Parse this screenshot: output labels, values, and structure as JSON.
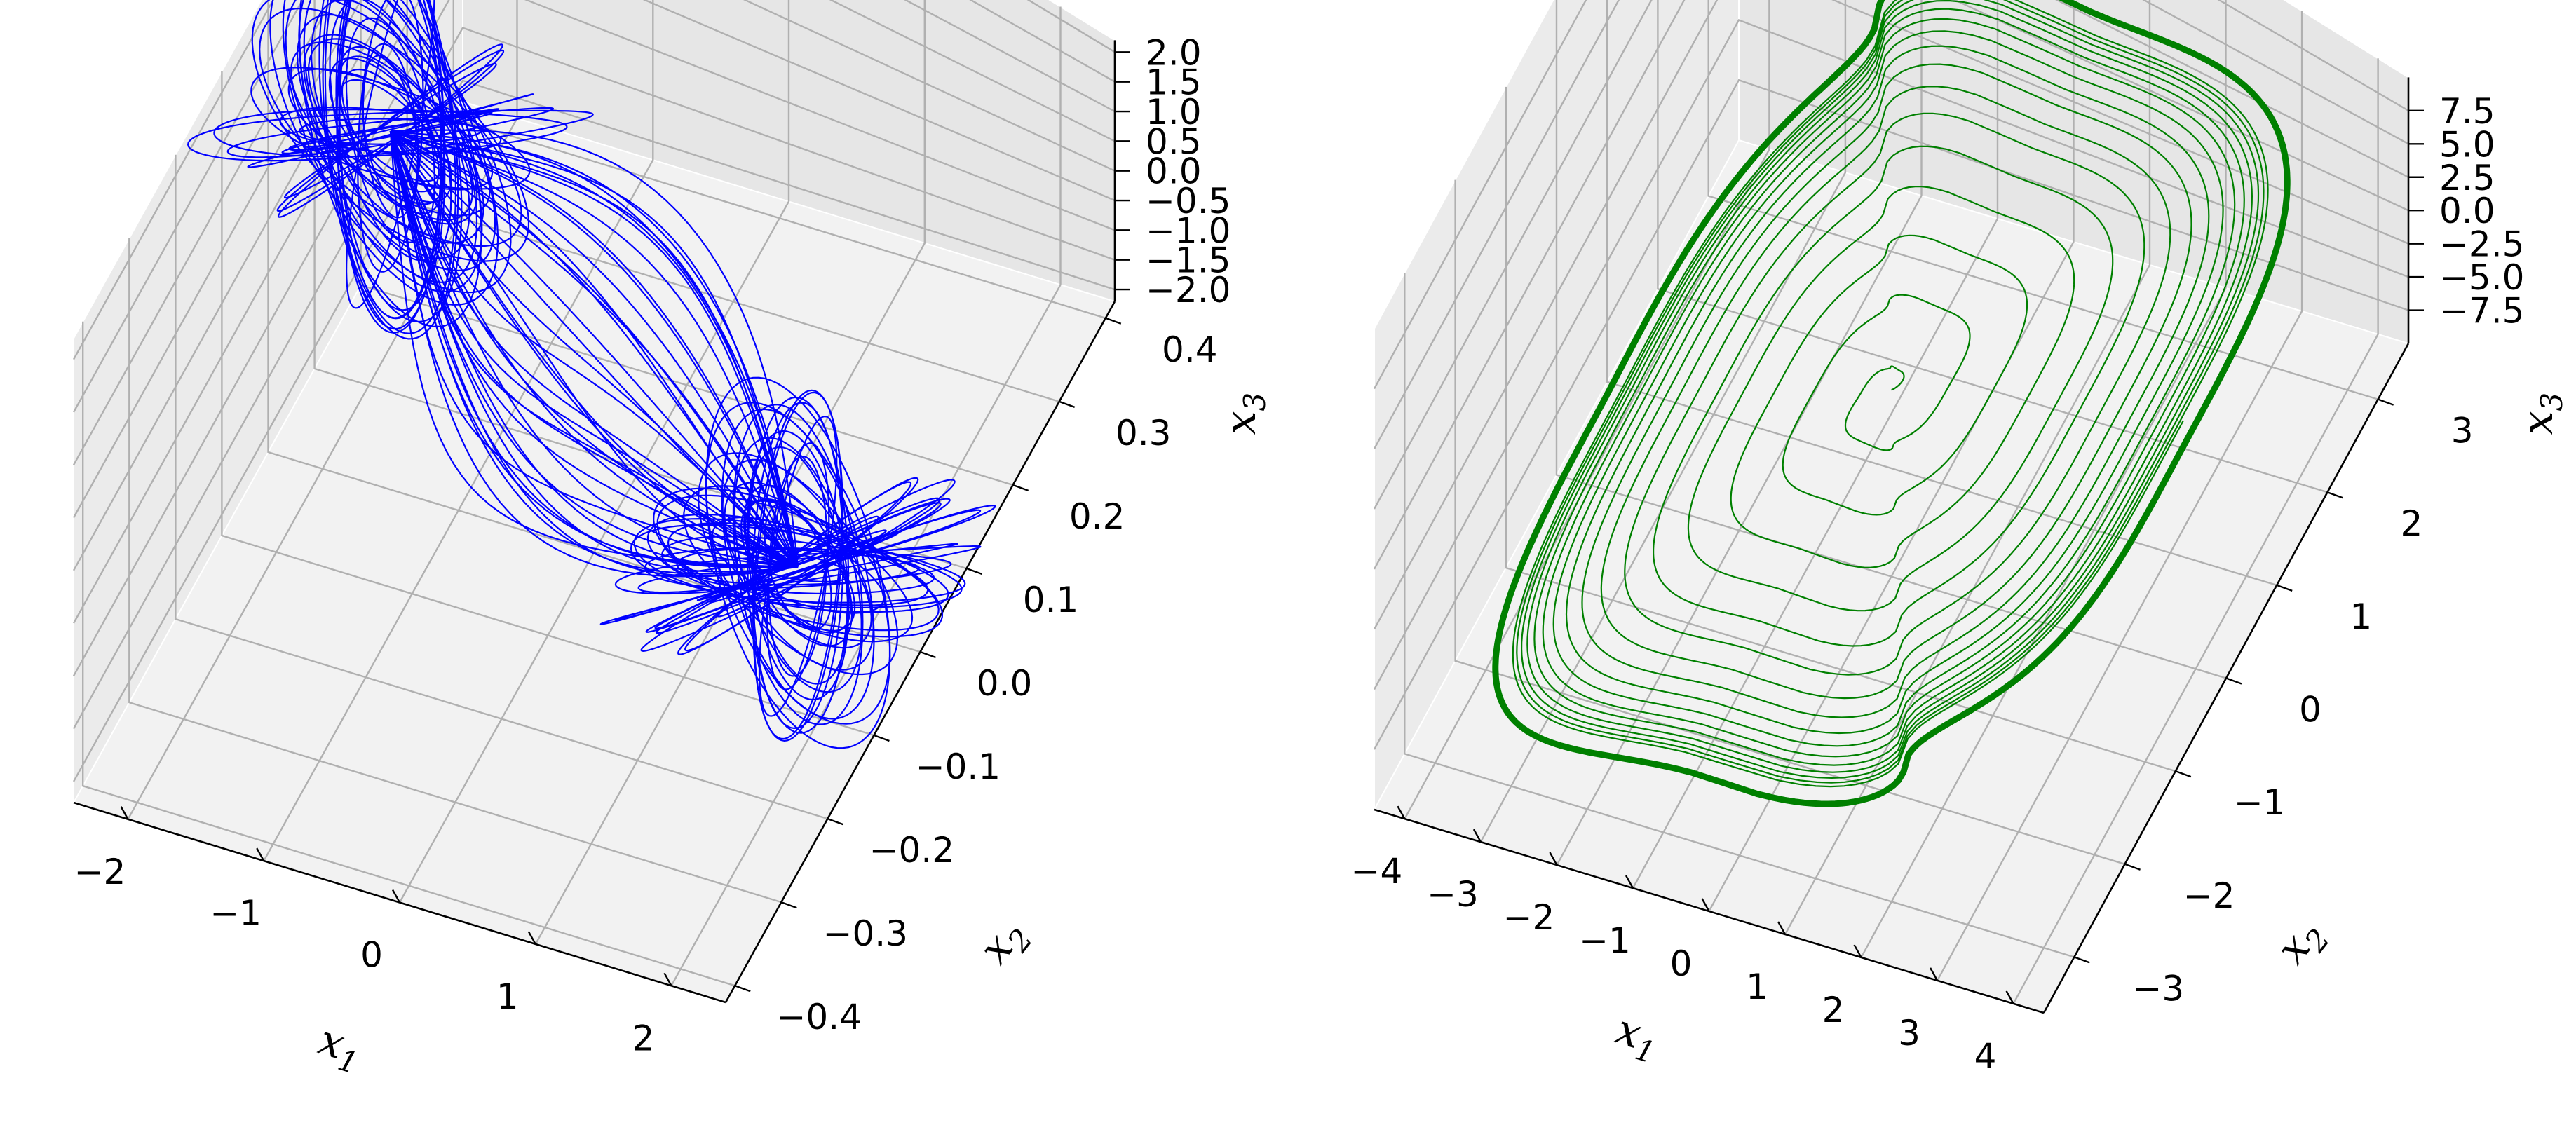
{
  "chart_data": [
    {
      "type": "line3d",
      "title": "",
      "xlabel": "x_1",
      "ylabel": "x_2",
      "zlabel": "x_3",
      "xlim": [
        -2.4,
        2.4
      ],
      "ylim": [
        -0.42,
        0.42
      ],
      "zlim": [
        -2.2,
        2.2
      ],
      "xticks": [
        -2,
        -1,
        0,
        1,
        2
      ],
      "xtick_labels": [
        "−2",
        "−1",
        "0",
        "1",
        "2"
      ],
      "yticks": [
        -0.4,
        -0.3,
        -0.2,
        -0.1,
        0.0,
        0.1,
        0.2,
        0.3,
        0.4
      ],
      "ytick_labels": [
        "−0.4",
        "−0.3",
        "−0.2",
        "−0.1",
        "0.0",
        "0.1",
        "0.2",
        "0.3",
        "0.4"
      ],
      "zticks": [
        -2.0,
        -1.5,
        -1.0,
        -0.5,
        0.0,
        0.5,
        1.0,
        1.5,
        2.0
      ],
      "ztick_labels": [
        "−2.0",
        "−1.5",
        "−1.0",
        "−0.5",
        "0.0",
        "0.5",
        "1.0",
        "1.5",
        "2.0"
      ],
      "grid": true,
      "series": [
        {
          "color": "#0000ff",
          "description_of_shape": "double-scroll chaotic attractor with two lobes centred near x_1 = -1.5 and x_1 = +1.5",
          "lobes": [
            {
              "center": [
                -1.5,
                0.0,
                1.5
              ]
            },
            {
              "center": [
                1.5,
                0.0,
                -1.5
              ]
            }
          ]
        }
      ]
    },
    {
      "type": "line3d",
      "title": "",
      "xlabel": "x_1",
      "ylabel": "x_2",
      "zlabel": "x_3",
      "xlim": [
        -4.4,
        4.4
      ],
      "ylim": [
        -3.6,
        3.6
      ],
      "zlim": [
        -10,
        10
      ],
      "xticks": [
        -4,
        -3,
        -2,
        -1,
        0,
        1,
        2,
        3,
        4
      ],
      "xtick_labels": [
        "−4",
        "−3",
        "−2",
        "−1",
        "0",
        "1",
        "2",
        "3",
        "4"
      ],
      "yticks": [
        -3,
        -2,
        -1,
        0,
        1,
        2,
        3
      ],
      "ytick_labels": [
        "−3",
        "−2",
        "−1",
        "0",
        "1",
        "2",
        "3"
      ],
      "zticks": [
        -7.5,
        -5.0,
        -2.5,
        0.0,
        2.5,
        5.0,
        7.5
      ],
      "ztick_labels": [
        "−7.5",
        "−5.0",
        "−2.5",
        "0.0",
        "2.5",
        "5.0",
        "7.5"
      ],
      "grid": true,
      "series": [
        {
          "color": "#008000",
          "description_of_shape": "trajectory spiralling outward from near origin onto a limit cycle",
          "limit_cycle_amplitude": [
            4.0,
            3.3,
            9.0
          ]
        }
      ]
    }
  ]
}
